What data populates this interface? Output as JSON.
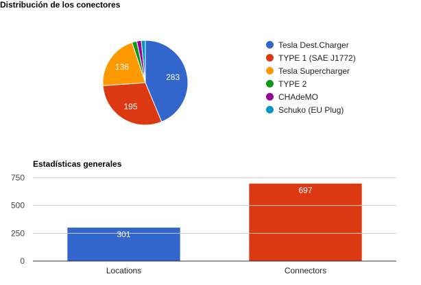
{
  "chart_data": [
    {
      "type": "pie",
      "title": "Distribución de los conectores",
      "legend": "right",
      "slices": [
        {
          "name": "Tesla Dest.Charger",
          "value": 283,
          "color": "#3366cc",
          "label": "283"
        },
        {
          "name": "TYPE 1 (SAE J1772)",
          "value": 195,
          "color": "#dc3912",
          "label": "195"
        },
        {
          "name": "Tesla Supercharger",
          "value": 136,
          "color": "#ff9900",
          "label": "136"
        },
        {
          "name": "TYPE 2",
          "value": 12,
          "color": "#109618",
          "label": ""
        },
        {
          "name": "CHAdeMO",
          "value": 11,
          "color": "#990099",
          "label": ""
        },
        {
          "name": "Schuko (EU Plug)",
          "value": 10,
          "color": "#0099c6",
          "label": ""
        }
      ]
    },
    {
      "type": "bar",
      "title": "Estadísticas generales",
      "categories": [
        "Locations",
        "Connectors"
      ],
      "values": [
        301,
        697
      ],
      "value_labels": [
        "301",
        "697"
      ],
      "colors": [
        "#3366cc",
        "#dc3912"
      ],
      "ylim": [
        0,
        750
      ],
      "yticks": [
        0,
        250,
        500,
        750
      ],
      "ytick_labels": [
        "0",
        "250",
        "500",
        "750"
      ],
      "grid": true
    }
  ]
}
